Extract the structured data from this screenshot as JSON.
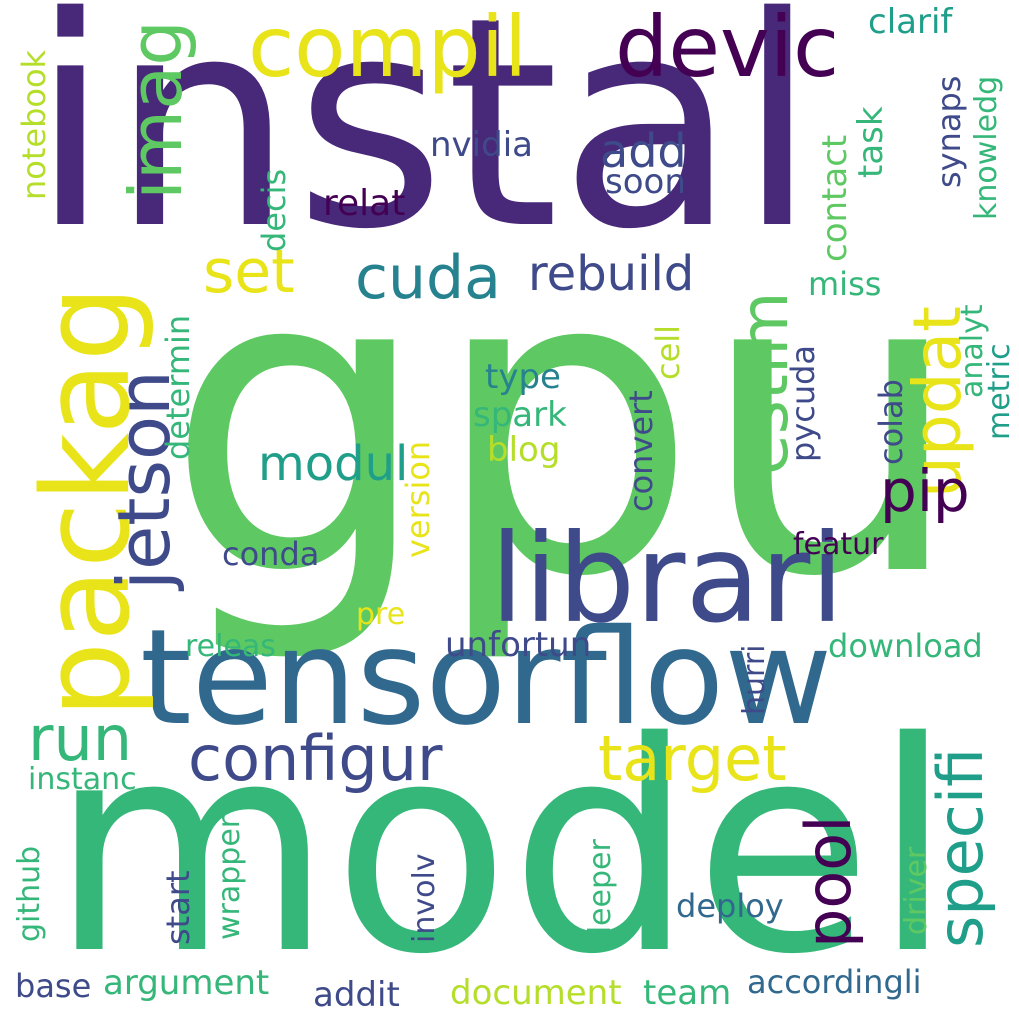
{
  "colors": {
    "dark_purple": "#440154",
    "indigo": "#482878",
    "blue_purple": "#3e4a89",
    "steel_blue": "#31688e",
    "teal_blue": "#26828e",
    "teal": "#1f9e89",
    "green_teal": "#35b779",
    "green": "#5ec962",
    "yellow_green": "#b5de2b",
    "yellow": "#e8e419"
  },
  "words": [
    "instal",
    "gpu",
    "model",
    "tensorflow",
    "librari",
    "packag",
    "compil",
    "devic",
    "imag",
    "jetson",
    "configur",
    "run",
    "updat",
    "estim",
    "specifi",
    "target",
    "pool",
    "pip",
    "cuda",
    "set",
    "modul",
    "rebuild",
    "add",
    "nvidia",
    "clarif",
    "soon",
    "relat",
    "decis",
    "contact",
    "task",
    "synaps",
    "knowledg",
    "notebook",
    "miss",
    "determin",
    "analyt",
    "metric",
    "type",
    "spark",
    "blog",
    "cell",
    "pycuda",
    "colab",
    "convert",
    "version",
    "conda",
    "featur",
    "pre",
    "releas",
    "unfortun",
    "download",
    "hurri",
    "instanc",
    "github",
    "wrapper",
    "start",
    "involv",
    "deeper",
    "deploy",
    "driver",
    "base",
    "argument",
    "addit",
    "document",
    "team",
    "accordingli"
  ]
}
